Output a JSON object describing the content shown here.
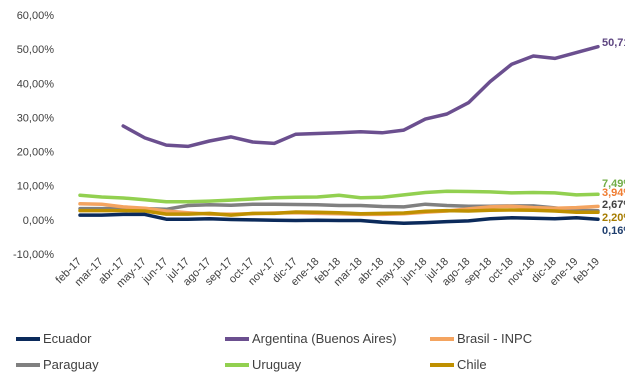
{
  "chart_data": {
    "type": "line",
    "title": "",
    "xlabel": "",
    "ylabel": "",
    "ylim": [
      -10,
      60
    ],
    "y_ticks": [
      "-10,00%",
      "0,00%",
      "10,00%",
      "20,00%",
      "30,00%",
      "40,00%",
      "50,00%",
      "60,00%"
    ],
    "grid": false,
    "legend_position": "bottom",
    "categories": [
      "feb-17",
      "mar-17",
      "abr-17",
      "may-17",
      "jun-17",
      "jul-17",
      "ago-17",
      "sep-17",
      "oct-17",
      "nov-17",
      "dic-17",
      "ene-18",
      "feb-18",
      "mar-18",
      "abr-18",
      "may-18",
      "jun-18",
      "jul-18",
      "ago-18",
      "sep-18",
      "oct-18",
      "nov-18",
      "dic-18",
      "ene-19",
      "feb-19"
    ],
    "series": [
      {
        "name": "Ecuador",
        "color": "#0b2a5b",
        "end_label": "0,16%",
        "label_color": "#1f3e6e",
        "values": [
          1.4,
          1.4,
          1.6,
          1.6,
          0.2,
          0.2,
          0.3,
          0.1,
          0.0,
          -0.1,
          -0.2,
          -0.1,
          -0.2,
          -0.2,
          -0.7,
          -1.0,
          -0.8,
          -0.5,
          -0.3,
          0.3,
          0.6,
          0.5,
          0.3,
          0.6,
          0.16
        ]
      },
      {
        "name": "Argentina (Buenos Aires)",
        "color": "#6b4f8f",
        "end_label": "50,71%",
        "label_color": "#5d4580",
        "values": [
          null,
          null,
          27.5,
          24.0,
          21.9,
          21.5,
          23.1,
          24.3,
          22.8,
          22.4,
          25.1,
          25.3,
          25.5,
          25.8,
          25.5,
          26.3,
          29.5,
          31.0,
          34.3,
          40.5,
          45.6,
          48.0,
          47.3,
          49.0,
          50.71
        ]
      },
      {
        "name": "Brasil - INPC",
        "color": "#f4a460",
        "end_label": "3,94%",
        "label_color": "#f07c30",
        "values": [
          4.7,
          4.6,
          3.8,
          3.4,
          2.6,
          2.1,
          1.7,
          1.7,
          1.8,
          2.0,
          2.1,
          1.9,
          1.8,
          1.6,
          1.6,
          1.8,
          2.2,
          2.6,
          3.2,
          3.8,
          4.0,
          3.6,
          3.4,
          3.6,
          3.94
        ]
      },
      {
        "name": "Paraguay",
        "color": "#808080",
        "end_label": "2,67%",
        "label_color": "#404040",
        "values": [
          3.3,
          3.3,
          3.4,
          3.3,
          3.1,
          4.2,
          4.4,
          4.3,
          4.6,
          4.6,
          4.5,
          4.4,
          4.2,
          4.2,
          3.9,
          3.8,
          4.6,
          4.2,
          4.0,
          4.0,
          4.1,
          4.1,
          3.5,
          2.8,
          2.67
        ]
      },
      {
        "name": "Uruguay",
        "color": "#92d050",
        "end_label": "7,49%",
        "label_color": "#70ad47",
        "values": [
          7.2,
          6.7,
          6.4,
          5.9,
          5.3,
          5.3,
          5.5,
          5.8,
          6.1,
          6.5,
          6.6,
          6.7,
          7.2,
          6.5,
          6.6,
          7.3,
          8.0,
          8.4,
          8.3,
          8.2,
          7.9,
          8.0,
          7.9,
          7.3,
          7.49
        ]
      },
      {
        "name": "Chile",
        "color": "#bf9000",
        "end_label": "2,20%",
        "label_color": "#a67c00",
        "values": [
          2.7,
          2.7,
          2.7,
          2.6,
          1.7,
          1.7,
          1.9,
          1.4,
          1.9,
          1.9,
          2.3,
          2.2,
          2.1,
          1.8,
          1.9,
          2.0,
          2.5,
          2.7,
          2.6,
          2.8,
          2.9,
          2.8,
          2.6,
          2.2,
          2.2
        ]
      }
    ]
  }
}
